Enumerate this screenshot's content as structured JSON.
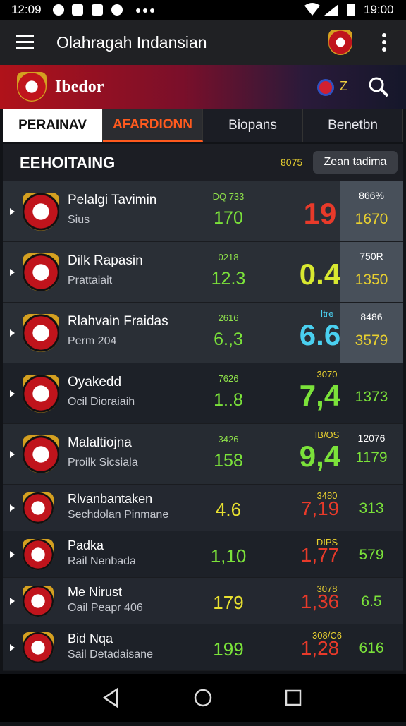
{
  "status_bar": {
    "time_left": "12:09",
    "time_right": "19:00"
  },
  "app_bar": {
    "title": "Olahragah Indansian"
  },
  "banner": {
    "brand": "Ibedor",
    "badge": "Z"
  },
  "tabs": [
    "PERAINAV",
    "AFARDIONN",
    "Biopans",
    "Benetbn"
  ],
  "section": {
    "title": "EEHOITAING",
    "count": "8075",
    "button": "Zean tadima"
  },
  "rows": [
    {
      "name": "Pelalgi Tavimin",
      "sub": "Sius",
      "small": "DQ 733",
      "mid": "170",
      "big": "19",
      "right_top": "866%",
      "right": "1670"
    },
    {
      "name": "Dilk Rapasin",
      "sub": "Prattaiait",
      "small": "0218",
      "mid": "12.3",
      "big": "0.4",
      "right_top": "750R",
      "right": "1350"
    },
    {
      "name": "Rlahvain Fraidas",
      "sub": "Perm 204",
      "small": "2616",
      "mid": "6.,3",
      "big_top": "Itre",
      "big": "6.6",
      "right_top": "8486",
      "right": "3579"
    },
    {
      "name": "Oyakedd",
      "sub": "Ocil Dioraiaih",
      "small": "7626",
      "mid": "1..8",
      "big_top": "3070",
      "big": "7,4",
      "right": "1373"
    },
    {
      "name": "Malaltiojna",
      "sub": "Proilk Sicsiala",
      "small": "3426",
      "mid": "158",
      "big_top": "IB/OS",
      "big": "9,4",
      "right_top": "12076",
      "right": "1179"
    },
    {
      "name": "Rlvanbantaken",
      "sub": "Sechdolan Pinmane",
      "mid": "4.6",
      "big_top": "3480",
      "big": "7,19",
      "right": "313"
    },
    {
      "name": "Padka",
      "sub": "Rail Nenbada",
      "mid": "1,10",
      "big_top": "DIPS",
      "big": "1,77",
      "right": "579"
    },
    {
      "name": "Me Nirust",
      "sub": "Oail Peapr 406",
      "mid": "179",
      "big_top": "3078",
      "big": "1,36",
      "right": "6.5"
    },
    {
      "name": "Bid Nqa",
      "sub": "Sail Detadaisane",
      "mid": "199",
      "big_top": "308/C6",
      "big": "1,28",
      "right": "616"
    }
  ]
}
